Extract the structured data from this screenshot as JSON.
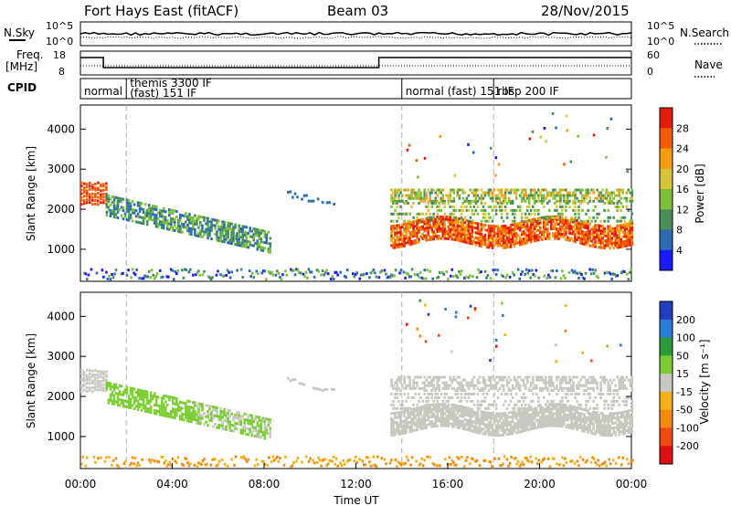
{
  "header": {
    "radar": "Fort Hays East (fitACF)",
    "beam": "Beam 03",
    "date": "28/Nov/2015"
  },
  "top_panels": {
    "nsky_label": "N.Sky",
    "nsky_ticks_left": [
      "10^5",
      "10^0"
    ],
    "nsky_ticks_right": [
      "10^5",
      "10^0"
    ],
    "nsearch_label": "N.Search",
    "freq_label": "Freq.",
    "freq_unit": "[MHz]",
    "freq_ticks_left": [
      "18",
      "8"
    ],
    "freq_ticks_right": [
      "60",
      "0"
    ],
    "nave_label": "Nave",
    "cpid_label": "CPID",
    "cpid_segments": [
      {
        "label": "normal",
        "start_hour": 0.0
      },
      {
        "label": "themis 3300 IF\n(fast) 151 IF",
        "start_hour": 2.0
      },
      {
        "label": "normal (fast) 151 IF",
        "start_hour": 14.0
      },
      {
        "label": "rbsp 200 IF",
        "start_hour": 18.0
      }
    ]
  },
  "chart_data": [
    {
      "type": "heatmap",
      "name": "power",
      "ylabel": "Slant Range [km]",
      "yticks": [
        "1000",
        "2000",
        "3000",
        "4000"
      ],
      "ylim": [
        200,
        4600
      ],
      "xlim": [
        0,
        24
      ],
      "colorbar_label": "Power [dB]",
      "colorbar_ticks": [
        "4",
        "8",
        "12",
        "16",
        "20",
        "24",
        "28"
      ],
      "colorbar_colors": [
        "#1a1aff",
        "#2b6cb0",
        "#4a8f5a",
        "#7bbf3a",
        "#d6c43a",
        "#f39c12",
        "#f25c05",
        "#e51c0a"
      ]
    },
    {
      "type": "heatmap",
      "name": "velocity",
      "ylabel": "Slant Range [km]",
      "yticks": [
        "1000",
        "2000",
        "3000",
        "4000"
      ],
      "ylim": [
        200,
        4600
      ],
      "xlim": [
        0,
        24
      ],
      "colorbar_label": "Velocity [m s⁻¹]",
      "colorbar_ticks": [
        "200",
        "100",
        "50",
        "15",
        "-15",
        "-50",
        "-100",
        "-200"
      ],
      "colorbar_colors": [
        "#1f3fbf",
        "#2a7dd6",
        "#2d9b3a",
        "#7ccd33",
        "#c8c8c0",
        "#f2b01a",
        "#f28a0f",
        "#f04a12",
        "#e01010"
      ]
    }
  ],
  "x_axis": {
    "ticks": [
      "00:00",
      "04:00",
      "08:00",
      "12:00",
      "16:00",
      "20:00",
      "00:00"
    ],
    "label": "Time UT"
  },
  "colors": {
    "dashed": "#b0b0b0"
  }
}
